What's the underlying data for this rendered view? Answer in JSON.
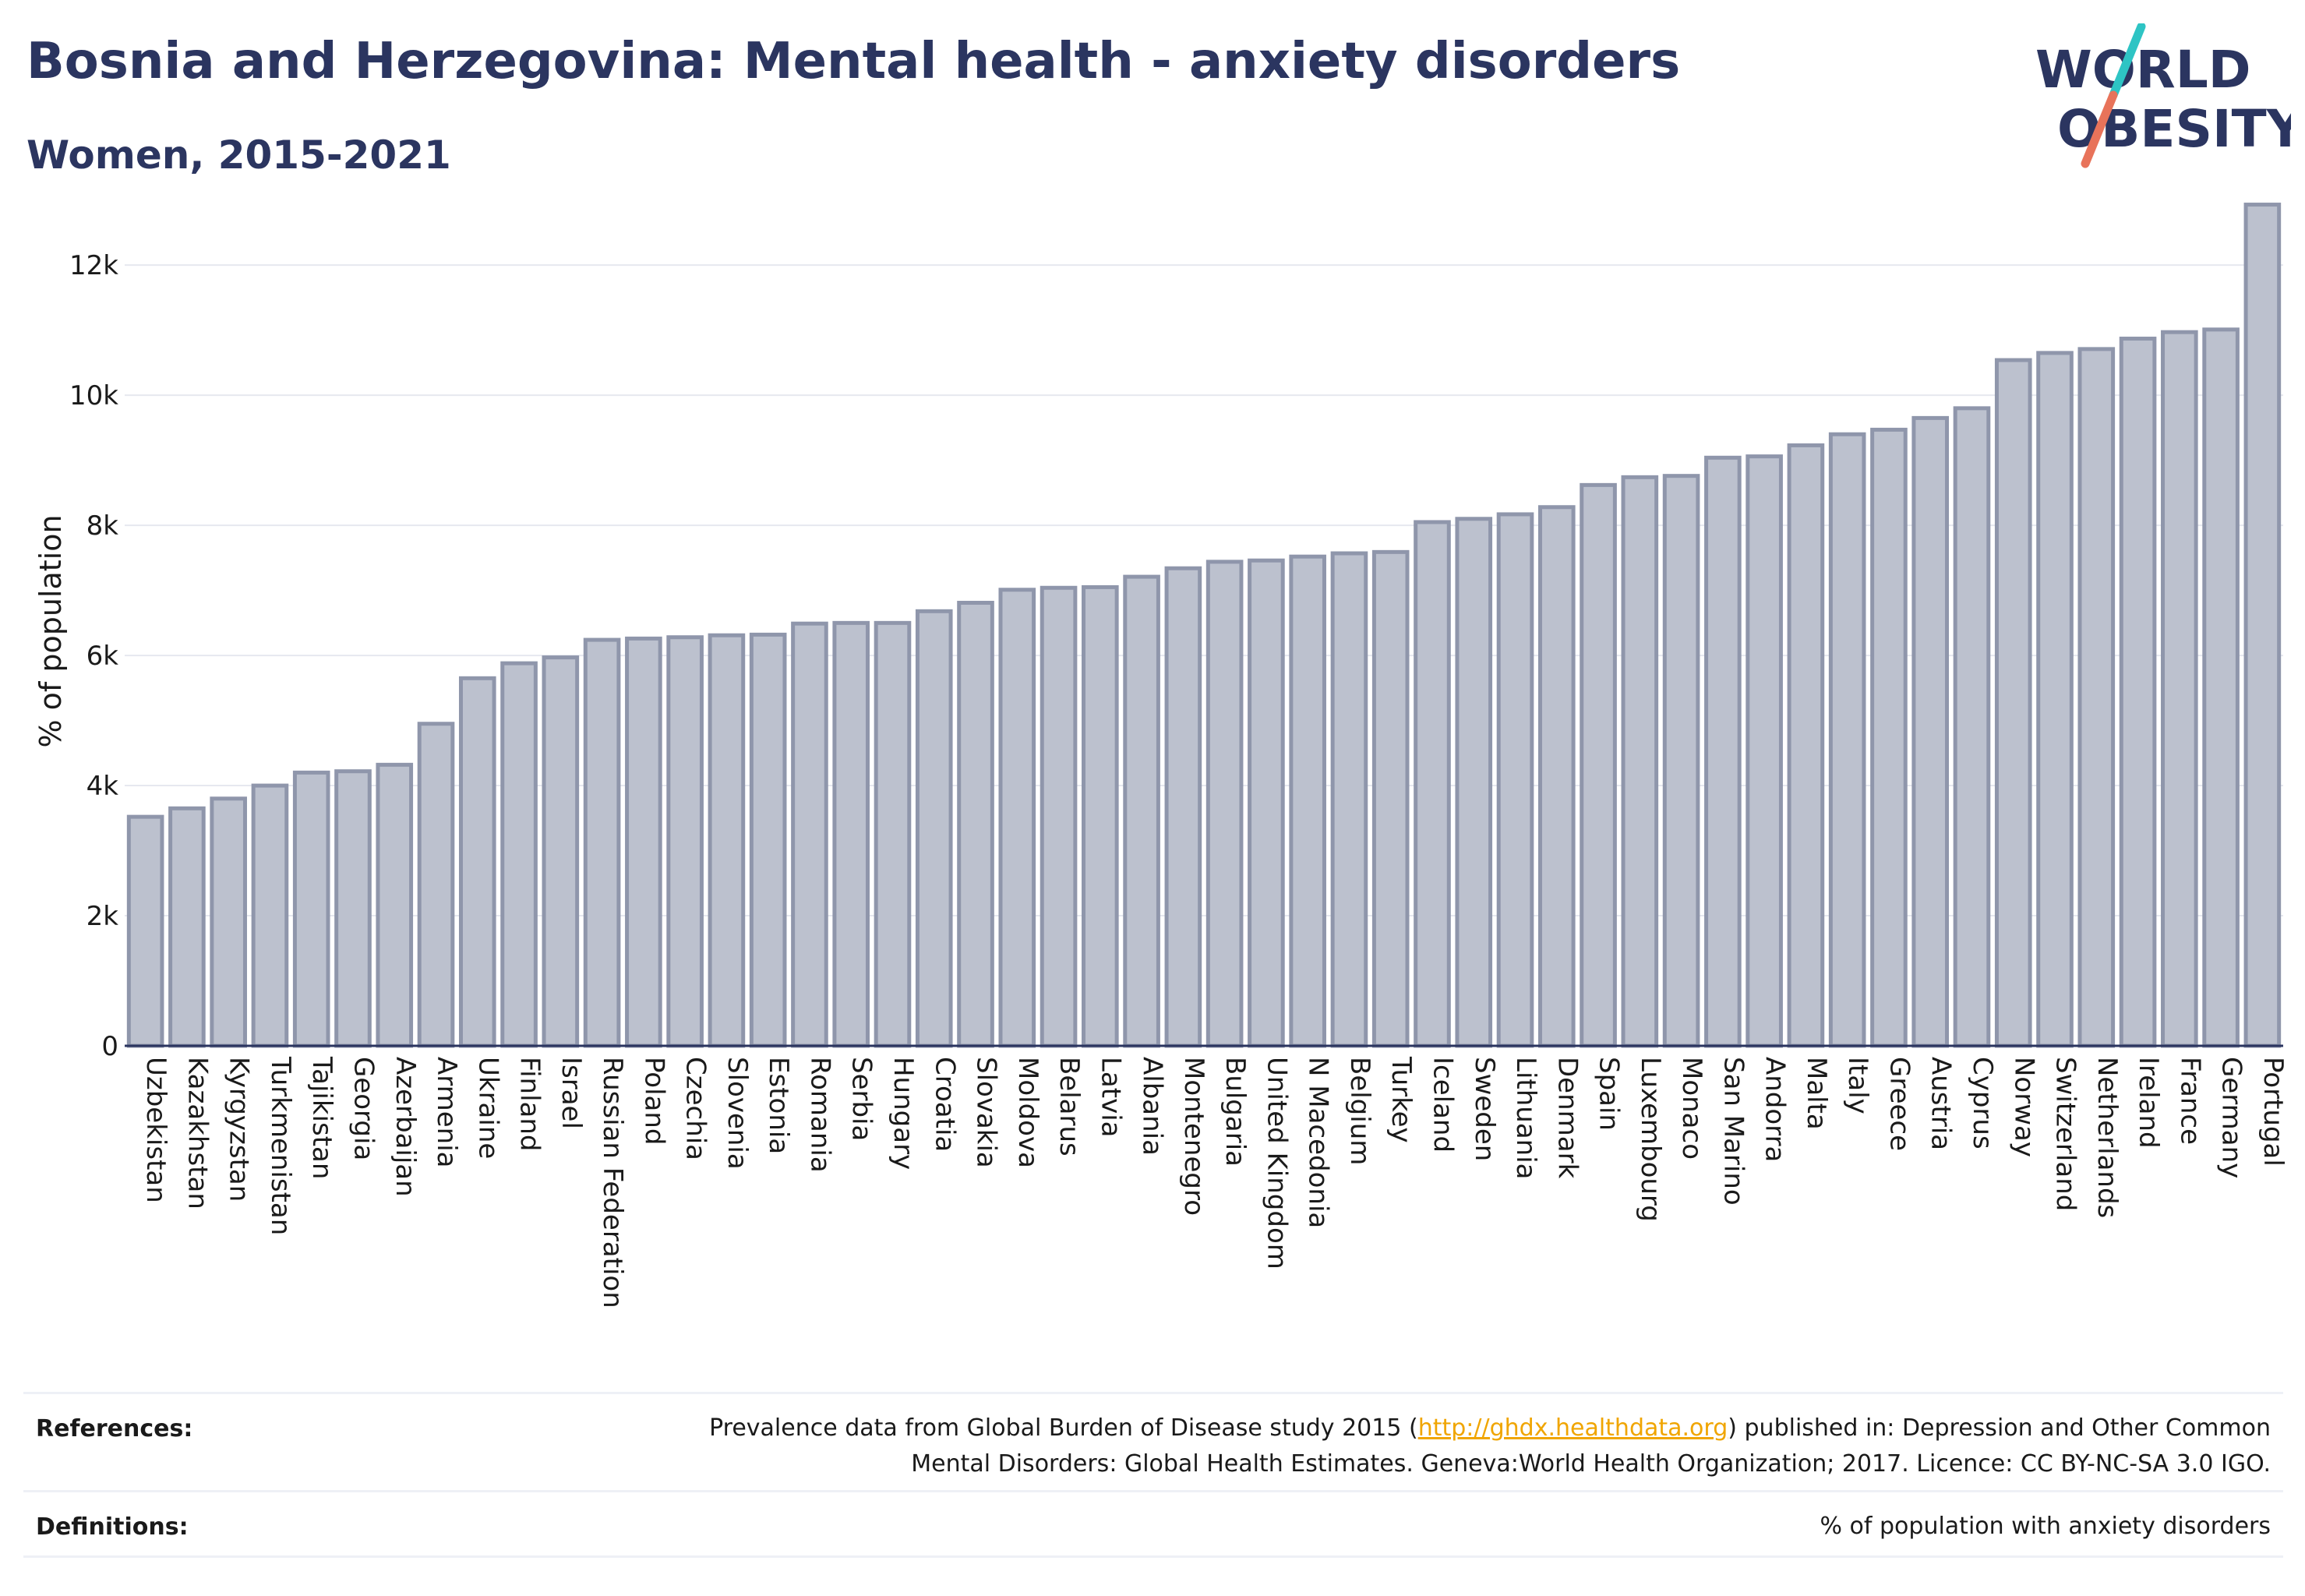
{
  "header": {
    "title": "Bosnia and Herzegovina: Mental health - anxiety disorders",
    "subtitle": "Women, 2015-2021"
  },
  "logo": {
    "line1": "WORLD",
    "line2": "OBESITY",
    "slash_color_top": "#2ec4c4",
    "slash_color_bottom": "#e8735a",
    "text_color": "#2b3560"
  },
  "chart_data": {
    "type": "bar",
    "ylabel": "% of population",
    "xlabel": "",
    "ylim": [
      0,
      13200
    ],
    "yticks": [
      0,
      2000,
      4000,
      6000,
      8000,
      10000,
      12000
    ],
    "ytick_labels": [
      "0",
      "2k",
      "4k",
      "6k",
      "8k",
      "10k",
      "12k"
    ],
    "grid": true,
    "bar_color": "#bcc1ce",
    "bar_edge_color": "#8f96ab",
    "categories": [
      "Uzbekistan",
      "Kazakhstan",
      "Kyrgyzstan",
      "Turkmenistan",
      "Tajikistan",
      "Georgia",
      "Azerbaijan",
      "Armenia",
      "Ukraine",
      "Finland",
      "Israel",
      "Russian Federation",
      "Poland",
      "Czechia",
      "Slovenia",
      "Estonia",
      "Romania",
      "Serbia",
      "Hungary",
      "Croatia",
      "Slovakia",
      "Moldova",
      "Belarus",
      "Latvia",
      "Albania",
      "Montenegro",
      "Bulgaria",
      "United Kingdom",
      "N Macedonia",
      "Belgium",
      "Turkey",
      "Iceland",
      "Sweden",
      "Lithuania",
      "Denmark",
      "Spain",
      "Luxembourg",
      "Monaco",
      "San Marino",
      "Andorra",
      "Malta",
      "Italy",
      "Greece",
      "Austria",
      "Cyprus",
      "Norway",
      "Switzerland",
      "Netherlands",
      "Ireland",
      "France",
      "Germany",
      "Portugal"
    ],
    "values": [
      3520,
      3650,
      3800,
      4000,
      4200,
      4220,
      4320,
      4950,
      5650,
      5880,
      5970,
      6240,
      6260,
      6280,
      6310,
      6320,
      6490,
      6500,
      6500,
      6680,
      6810,
      7010,
      7040,
      7050,
      7210,
      7340,
      7440,
      7460,
      7520,
      7570,
      7590,
      8050,
      8100,
      8170,
      8280,
      8620,
      8740,
      8760,
      9040,
      9060,
      9230,
      9400,
      9470,
      9650,
      9800,
      10540,
      10650,
      10710,
      10870,
      10970,
      11010,
      12930
    ]
  },
  "footer": {
    "references_label": "References:",
    "references_line1_a": "Prevalence data from Global Burden of Disease study 2015 (",
    "references_link": "http://ghdx.healthdata.org",
    "references_line1_b": ") published in: Depression and Other Common",
    "references_line2": "Mental Disorders: Global Health Estimates. Geneva:World Health Organization; 2017. Licence: CC BY-NC-SA 3.0 IGO.",
    "definitions_label": "Definitions:",
    "definitions_text": "% of population with anxiety disorders"
  }
}
